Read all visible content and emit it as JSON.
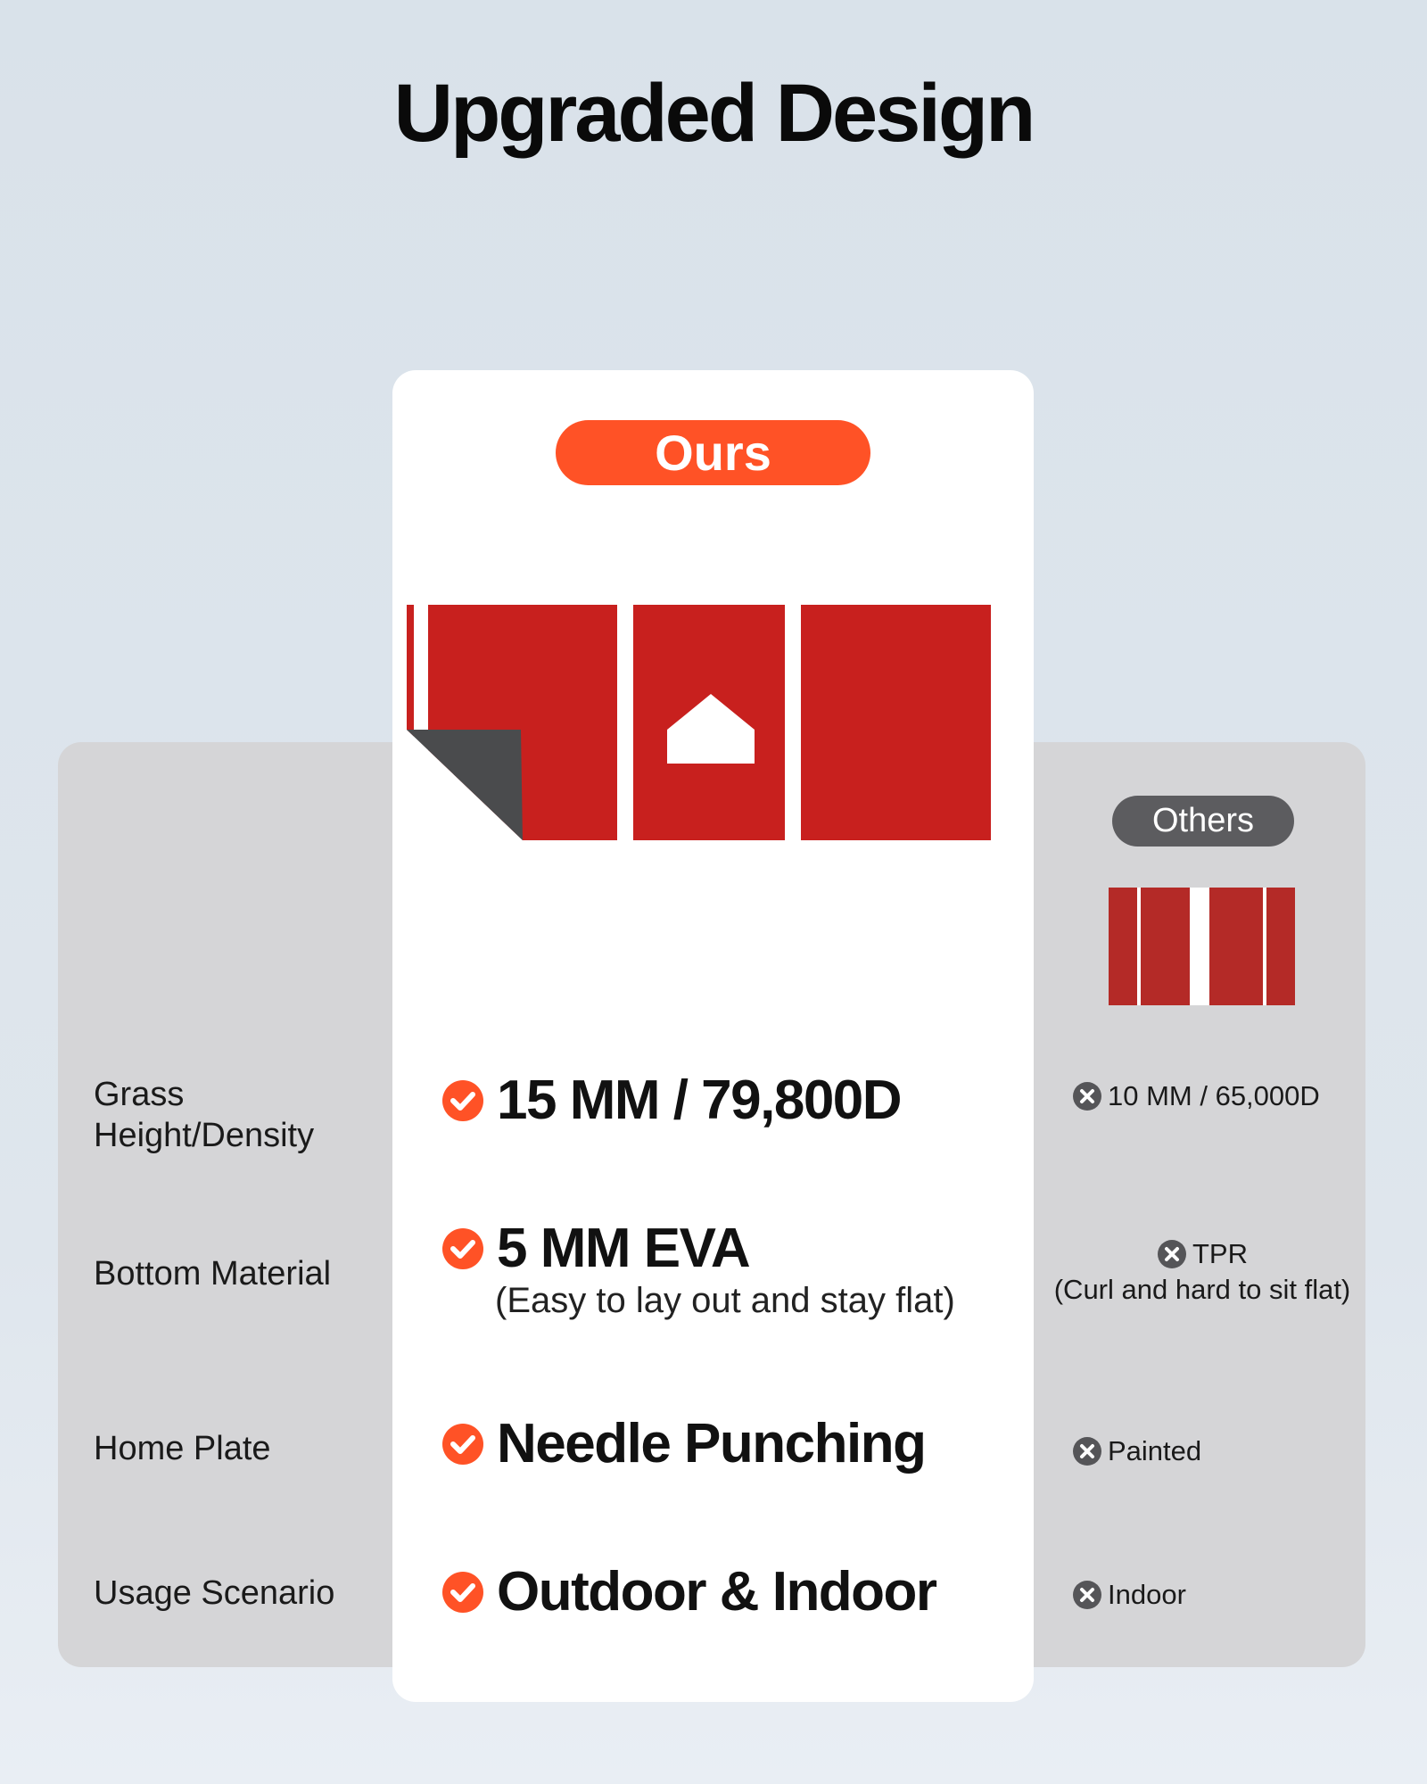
{
  "title": "Upgraded Design",
  "colors": {
    "accent": "#ff5226",
    "others_pill": "#5c5c5f",
    "mat_red": "#c8201e"
  },
  "ours": {
    "badge": "Ours"
  },
  "others": {
    "badge": "Others"
  },
  "rows": [
    {
      "label": "Grass Height/Density",
      "ours": "15 MM / 79,800D",
      "others": "10 MM / 65,000D"
    },
    {
      "label": "Bottom Material",
      "ours": "5 MM EVA",
      "ours_note": "(Easy to lay out and stay flat)",
      "others": "TPR",
      "others_note": "(Curl and hard to sit flat)"
    },
    {
      "label": "Home Plate",
      "ours": "Needle Punching",
      "others": "Painted"
    },
    {
      "label": "Usage Scenario",
      "ours": "Outdoor & Indoor",
      "others": "Indoor"
    }
  ],
  "icons": {
    "ours": "check-circle-icon",
    "others": "x-circle-icon"
  }
}
